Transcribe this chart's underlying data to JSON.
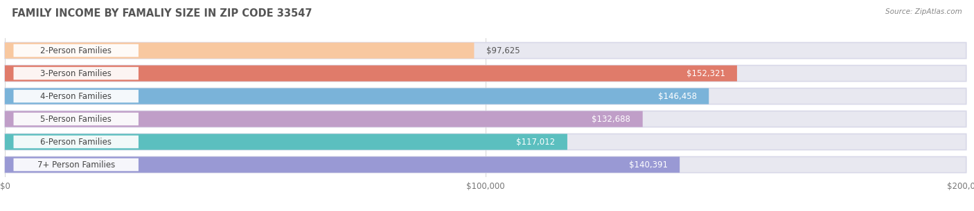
{
  "title": "FAMILY INCOME BY FAMALIY SIZE IN ZIP CODE 33547",
  "source": "Source: ZipAtlas.com",
  "categories": [
    "2-Person Families",
    "3-Person Families",
    "4-Person Families",
    "5-Person Families",
    "6-Person Families",
    "7+ Person Families"
  ],
  "values": [
    97625,
    152321,
    146458,
    132688,
    117012,
    140391
  ],
  "labels": [
    "$97,625",
    "$152,321",
    "$146,458",
    "$132,688",
    "$117,012",
    "$140,391"
  ],
  "bar_colors": [
    "#f8c8a0",
    "#e07b6a",
    "#7ab3d9",
    "#c09ec8",
    "#5bbfbf",
    "#9999d4"
  ],
  "bar_bg_color": "#e8e8f0",
  "xlim": [
    0,
    200000
  ],
  "xtick_labels": [
    "$0",
    "$100,000",
    "$200,000"
  ],
  "label_color_inside": "#ffffff",
  "label_color_outside": "#555555",
  "title_color": "#555555",
  "source_color": "#888888",
  "background_color": "#ffffff",
  "bar_height": 0.7,
  "label_fontsize": 8.5,
  "title_fontsize": 10.5,
  "category_fontsize": 8.5,
  "inside_threshold": 110000
}
